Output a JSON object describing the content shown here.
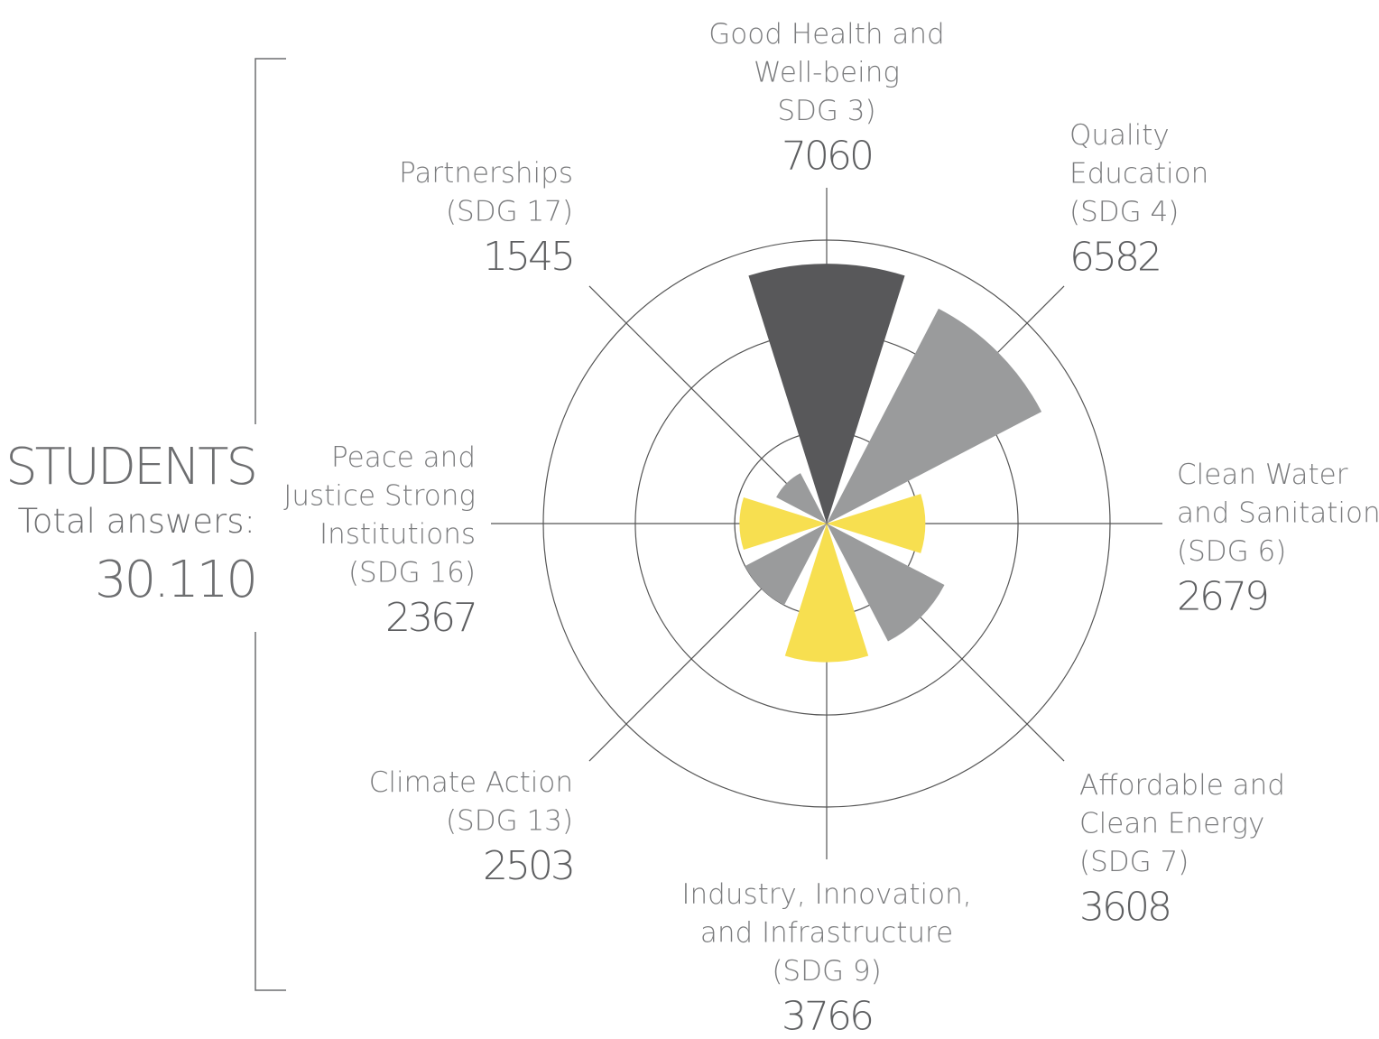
{
  "chart_data": {
    "type": "polar_area",
    "group_title": "STUDENTS",
    "total_caption": "Total answers:",
    "total": "30.110",
    "categories": [
      [
        "Good Health and",
        "Well-being",
        "SDG 3)"
      ],
      [
        "Quality",
        "Education",
        "(SDG 4)"
      ],
      [
        "Clean Water",
        "and Sanitation",
        "(SDG 6)"
      ],
      [
        "Affordable and",
        "Clean Energy",
        "(SDG 7)"
      ],
      [
        "Industry, Innovation,",
        "and Infrastructure",
        "(SDG 9)"
      ],
      [
        "Climate Action",
        "(SDG 13)"
      ],
      [
        "Peace and",
        "Justice Strong",
        "Institutions",
        "(SDG 16)"
      ],
      [
        "Partnerships",
        "(SDG 17)"
      ]
    ],
    "values": [
      7060,
      6582,
      2679,
      3608,
      3766,
      2503,
      2367,
      1545
    ],
    "colors": [
      "#58585a",
      "#9a9b9c",
      "#f7df50",
      "#9a9b9c",
      "#f7df50",
      "#9a9b9c",
      "#f7df50",
      "#9a9b9c"
    ],
    "rlim": [
      0,
      7700
    ],
    "rticks": [
      2500,
      5200,
      7700
    ],
    "grid": true
  }
}
